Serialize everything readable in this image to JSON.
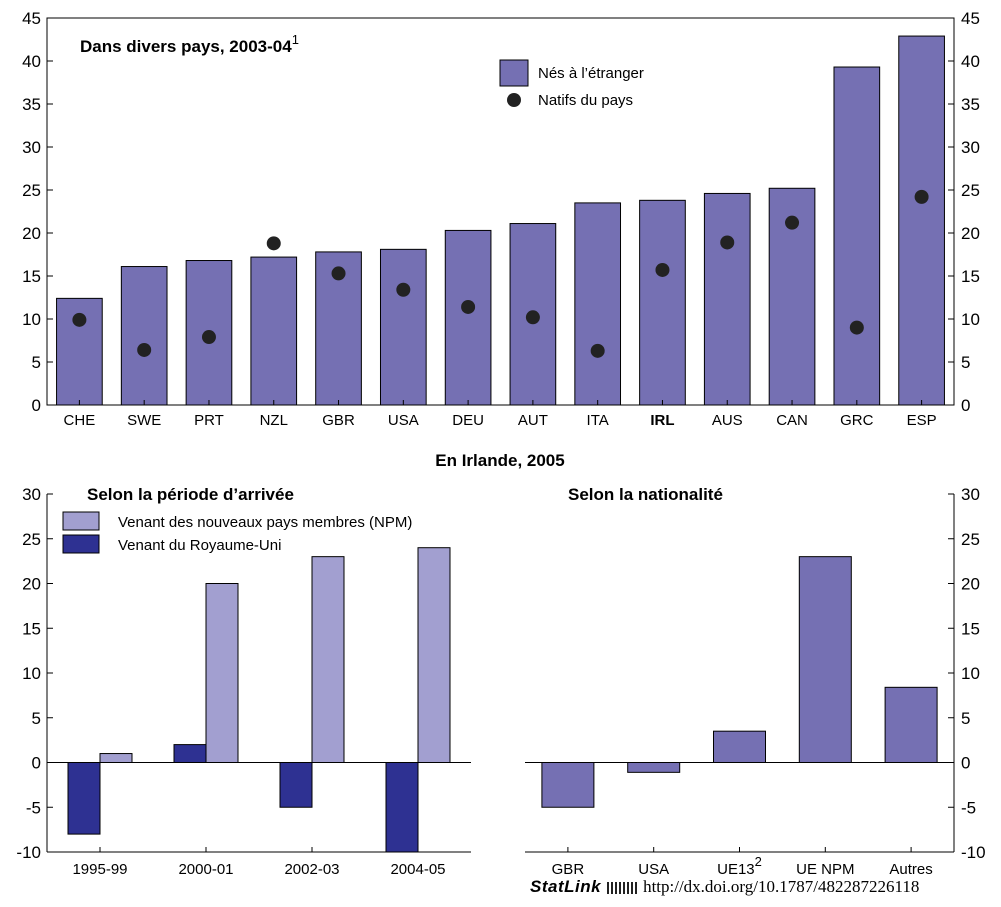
{
  "chart_data": [
    {
      "type": "bar",
      "title": "Dans divers pays, 2003-04",
      "title_note": "1",
      "categories": [
        "CHE",
        "SWE",
        "PRT",
        "NZL",
        "GBR",
        "USA",
        "DEU",
        "AUT",
        "ITA",
        "IRL",
        "AUS",
        "CAN",
        "GRC",
        "ESP"
      ],
      "highlight_category": "IRL",
      "series": [
        {
          "name": "Nés à l’étranger",
          "kind": "bar",
          "color": "#7570b3",
          "values": [
            12.4,
            16.1,
            16.8,
            17.2,
            17.8,
            18.1,
            20.3,
            21.1,
            23.5,
            23.8,
            24.6,
            25.2,
            39.3,
            42.9
          ]
        },
        {
          "name": "Natifs du pays",
          "kind": "marker",
          "color": "#222222",
          "values": [
            9.9,
            6.4,
            7.9,
            18.8,
            15.3,
            13.4,
            11.4,
            10.2,
            6.3,
            15.7,
            18.9,
            21.2,
            9.0,
            24.2
          ]
        }
      ],
      "ylim": [
        0,
        45
      ],
      "yticks": [
        "0",
        "5",
        "10",
        "15",
        "20",
        "25",
        "30",
        "35",
        "40",
        "45"
      ],
      "grid": false,
      "legend": "top-right"
    },
    {
      "type": "bar",
      "title": "Selon la période d’arrivée",
      "categories": [
        "1995-99",
        "2000-01",
        "2002-03",
        "2004-05"
      ],
      "series": [
        {
          "name": "Venant du Royaume-Uni",
          "color": "#2e3192",
          "values": [
            -8,
            2,
            -5,
            -10
          ]
        },
        {
          "name": "Venant des nouveaux pays membres (NPM)",
          "color": "#a29fd0",
          "values": [
            1,
            20,
            23,
            24
          ]
        }
      ],
      "legend_order": [
        "Venant des nouveaux pays membres (NPM)",
        "Venant du Royaume-Uni"
      ],
      "ylim": [
        -10,
        30
      ],
      "yticks": [
        "-10",
        "-5",
        "0",
        "5",
        "10",
        "15",
        "20",
        "25",
        "30"
      ],
      "grid": false,
      "legend": "top-left"
    },
    {
      "type": "bar",
      "title": "Selon la nationalité",
      "categories": [
        "GBR",
        "USA",
        "UE13",
        "UE NPM",
        "Autres"
      ],
      "category_notes": [
        "",
        "",
        "2",
        "",
        ""
      ],
      "series": [
        {
          "color": "#7570b3",
          "values": [
            -5,
            -1.1,
            3.5,
            23,
            8.4
          ]
        }
      ],
      "ylim": [
        -10,
        30
      ],
      "yticks": [
        "-10",
        "-5",
        "0",
        "5",
        "10",
        "15",
        "20",
        "25",
        "30"
      ],
      "grid": false
    }
  ],
  "panel_header": "En Irlande, 2005",
  "footer": {
    "statlink": "StatLink",
    "url": "http://dx.doi.org/10.1787/482287226118"
  }
}
